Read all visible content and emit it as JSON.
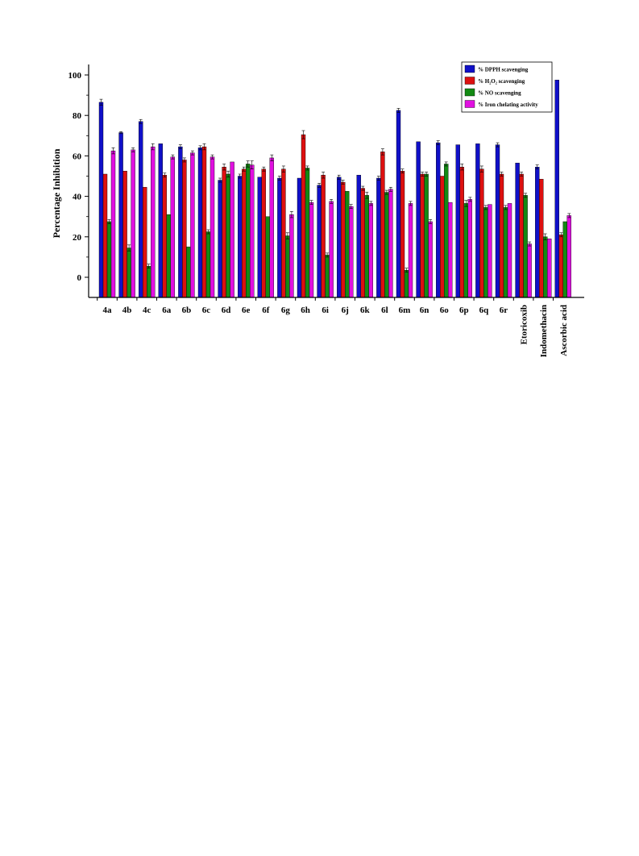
{
  "chart_data": {
    "type": "bar",
    "ylabel": "Percentage Inhibition",
    "xlabel": "",
    "ylim": [
      -10,
      105
    ],
    "yticks": [
      0,
      20,
      40,
      60,
      80,
      100
    ],
    "grid": false,
    "legend_position": "top-right",
    "categories": [
      "4a",
      "4b",
      "4c",
      "6a",
      "6b",
      "6c",
      "6d",
      "6e",
      "6f",
      "6g",
      "6h",
      "6i",
      "6j",
      "6k",
      "6l",
      "6m",
      "6n",
      "6o",
      "6p",
      "6q",
      "6r",
      "Etoricoxib",
      "Indomethacin",
      "Ascorbic acid"
    ],
    "series": [
      {
        "name": "% DPPH scavenging",
        "color": "#1010c8",
        "values": [
          86.5,
          71.5,
          77,
          66,
          64.5,
          64,
          48,
          50,
          49.5,
          49,
          49,
          45.5,
          49.5,
          50.5,
          49,
          82.5,
          67,
          66.5,
          65.5,
          66,
          65.5,
          56.5,
          54.5,
          97.5
        ],
        "errors": [
          1.5,
          0.5,
          1,
          0,
          1,
          1,
          1,
          1,
          0,
          1,
          0,
          1,
          1,
          0,
          1,
          1,
          0,
          1,
          0,
          0,
          1,
          0,
          1,
          0
        ]
      },
      {
        "name": "% H₂O₂ scavenging",
        "color": "#dd1010",
        "values": [
          51,
          52.5,
          44.5,
          50.5,
          58,
          64.5,
          54.5,
          53.5,
          53.5,
          53.5,
          70.5,
          50.5,
          47,
          44,
          62,
          52.5,
          51,
          50,
          54.5,
          53.5,
          51,
          51,
          48.5,
          21
        ],
        "errors": [
          0,
          0,
          0,
          1,
          1,
          1.5,
          1.5,
          1,
          1,
          1.5,
          2,
          1.5,
          1,
          1,
          1.5,
          1,
          1,
          0,
          1.5,
          1.5,
          1,
          1,
          0,
          1
        ]
      },
      {
        "name": "% NO scavenging",
        "color": "#138a13",
        "values": [
          27.5,
          14.5,
          5.5,
          31,
          15,
          22.5,
          51,
          56,
          30,
          20.5,
          54,
          11,
          42.5,
          40.5,
          42,
          3.5,
          51,
          56,
          36.5,
          34.5,
          34.5,
          40.5,
          20,
          27.5
        ],
        "errors": [
          1,
          1.5,
          1,
          0,
          0,
          1,
          1.5,
          1.5,
          0,
          1.5,
          1,
          1,
          0,
          1.5,
          1,
          1,
          1,
          1,
          1.5,
          1,
          1,
          1,
          1.5,
          0
        ]
      },
      {
        "name": "% Iron chelating activity",
        "color": "#e010e0",
        "values": [
          62.5,
          63,
          64.5,
          59.5,
          61.5,
          59.5,
          57,
          55.5,
          59,
          31,
          37,
          37.5,
          35,
          36.5,
          43.5,
          36.5,
          27.5,
          37,
          38.5,
          36,
          36.5,
          16.5,
          19,
          30.5
        ],
        "errors": [
          1.5,
          1,
          1.5,
          1,
          1,
          1,
          0,
          2,
          1.5,
          1.5,
          1,
          1,
          1,
          1,
          1,
          1,
          1,
          0,
          1,
          0,
          0,
          1,
          0,
          1
        ]
      }
    ]
  }
}
